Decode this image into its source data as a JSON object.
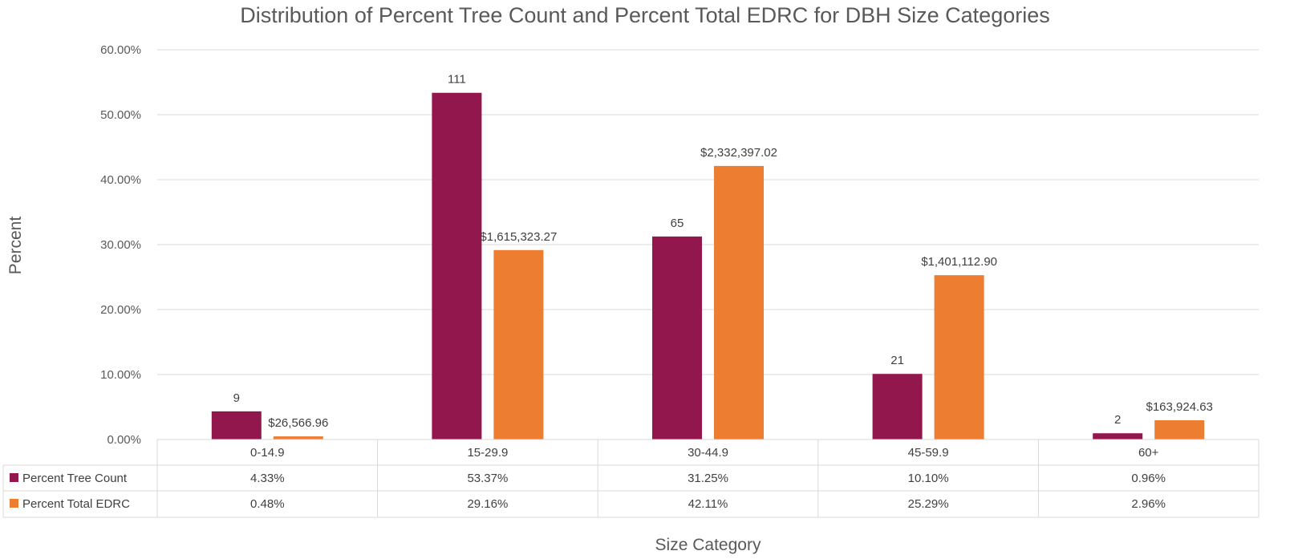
{
  "chart_data": {
    "type": "bar",
    "title": "Distribution of Percent Tree Count and Percent Total EDRC for DBH Size Categories",
    "xlabel": "Size Category",
    "ylabel": "Percent",
    "ylim": [
      0,
      60
    ],
    "y_ticks": [
      "0.00%",
      "10.00%",
      "20.00%",
      "30.00%",
      "40.00%",
      "50.00%",
      "60.00%"
    ],
    "grid": true,
    "legend": "data table",
    "categories": [
      "0-14.9",
      "15-29.9",
      "30-44.9",
      "45-59.9",
      "60+"
    ],
    "series": [
      {
        "name": "Percent Tree Count",
        "color": "#92174d",
        "values": [
          4.33,
          53.37,
          31.25,
          10.1,
          0.96
        ],
        "table_values": [
          "4.33%",
          "53.37%",
          "31.25%",
          "10.10%",
          "0.96%"
        ],
        "data_labels": [
          "9",
          "111",
          "65",
          "21",
          "2"
        ]
      },
      {
        "name": "Percent Total EDRC",
        "color": "#ed7d31",
        "values": [
          0.48,
          29.16,
          42.11,
          25.29,
          2.96
        ],
        "table_values": [
          "0.48%",
          "29.16%",
          "42.11%",
          "25.29%",
          "2.96%"
        ],
        "data_labels": [
          "$26,566.96",
          "$1,615,323.27",
          "$2,332,397.02",
          "$1,401,112.90",
          "$163,924.63"
        ]
      }
    ]
  }
}
